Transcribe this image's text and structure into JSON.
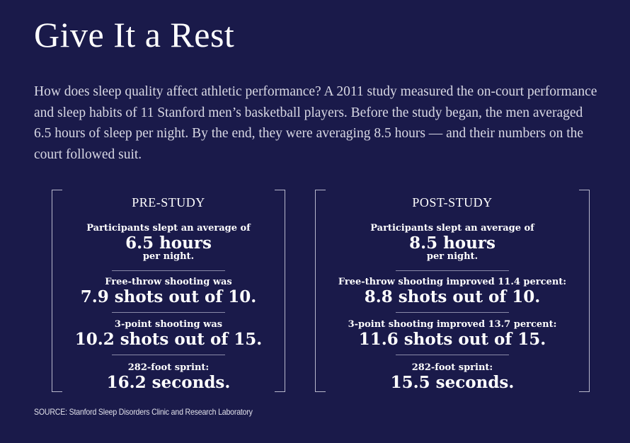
{
  "title": "Give It a Rest",
  "intro": "How does sleep quality affect athletic performance? A 2011 study measured the on-court performance and sleep habits of 11 Stanford men’s basketball players. Before the study began, the men averaged 6.5 hours of sleep per night. By the end, they were averaging 8.5 hours — and their numbers on the court followed suit.",
  "pre": {
    "heading": "PRE-STUDY",
    "sleep_label": "Participants slept an average of",
    "sleep_value": "6.5 hours",
    "sleep_unit": "per night.",
    "ft_label": "Free-throw shooting was",
    "ft_value": "7.9 shots out of 10.",
    "three_label": "3-point shooting was",
    "three_value": "10.2 shots out of 15.",
    "sprint_label": "282-foot sprint:",
    "sprint_value": "16.2 seconds."
  },
  "post": {
    "heading": "POST-STUDY",
    "sleep_label": "Participants slept an average of",
    "sleep_value": "8.5 hours",
    "sleep_unit": "per night.",
    "ft_label": "Free-throw shooting improved 11.4 percent:",
    "ft_value": "8.8 shots out of 10.",
    "three_label": "3-point shooting improved 13.7 percent:",
    "three_value": "11.6 shots out of 15.",
    "sprint_label": "282-foot sprint:",
    "sprint_value": "15.5 seconds."
  },
  "source": "SOURCE: Stanford Sleep Disorders Clinic and Research Laboratory",
  "colors": {
    "background": "#1a1a4a",
    "text": "#ffffff",
    "bracket": "#b8b8cc"
  }
}
